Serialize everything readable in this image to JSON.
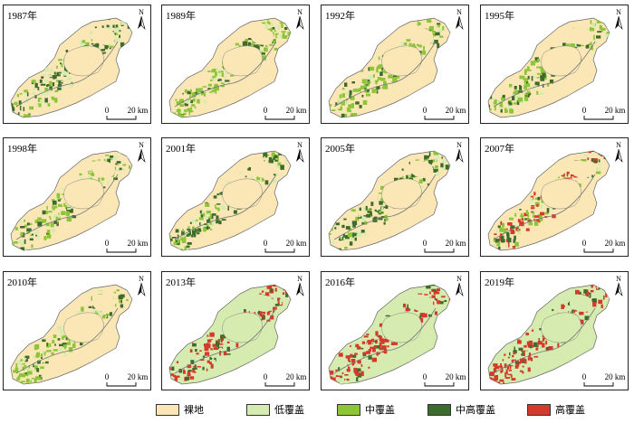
{
  "map": {
    "north_label": "N",
    "scale": {
      "zero": "0",
      "distance": "20 km"
    },
    "panels": [
      {
        "year": "1987年",
        "dominant": "mid",
        "patches": "mixed-heavy"
      },
      {
        "year": "1989年",
        "dominant": "mid",
        "patches": "mid"
      },
      {
        "year": "1992年",
        "dominant": "mid",
        "patches": "mid"
      },
      {
        "year": "1995年",
        "dominant": "mid",
        "patches": "mixed"
      },
      {
        "year": "1998年",
        "dominant": "mid",
        "patches": "mixed"
      },
      {
        "year": "2001年",
        "dominant": "midhigh",
        "patches": "midhigh"
      },
      {
        "year": "2005年",
        "dominant": "midhigh",
        "patches": "midhigh"
      },
      {
        "year": "2007年",
        "dominant": "high",
        "patches": "high-mixed"
      },
      {
        "year": "2010年",
        "dominant": "mid",
        "patches": "mid"
      },
      {
        "year": "2013年",
        "dominant": "high",
        "patches": "high-low"
      },
      {
        "year": "2016年",
        "dominant": "high",
        "patches": "high-low"
      },
      {
        "year": "2019年",
        "dominant": "high",
        "patches": "high-low"
      }
    ]
  },
  "legend": [
    {
      "label": "裸地",
      "color": "#fbe7b5"
    },
    {
      "label": "低覆盖",
      "color": "#d6ebb0"
    },
    {
      "label": "中覆盖",
      "color": "#8cc43a"
    },
    {
      "label": "中高覆盖",
      "color": "#3d6b2b"
    },
    {
      "label": "高覆盖",
      "color": "#d43a2c"
    }
  ]
}
